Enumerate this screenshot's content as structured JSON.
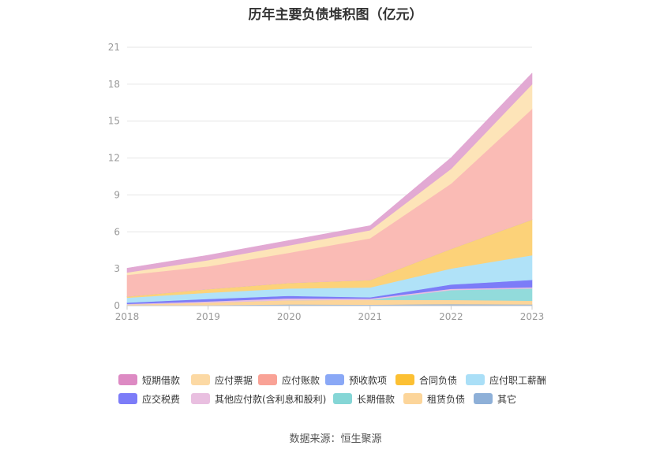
{
  "chart_data": {
    "type": "area",
    "stacked": true,
    "title": "历年主要负债堆积图（亿元）",
    "x": [
      "2018",
      "2019",
      "2020",
      "2021",
      "2022",
      "2023"
    ],
    "ylim": [
      0,
      21
    ],
    "yticks": [
      "0",
      "3",
      "6",
      "9",
      "12",
      "15",
      "18",
      "21"
    ],
    "grid": true,
    "legend_position": "bottom",
    "series": [
      {
        "name": "其它",
        "color": "#8eb0d8",
        "values": [
          0.05,
          0.05,
          0.1,
          0.08,
          0.12,
          0.1
        ]
      },
      {
        "name": "租赁负债",
        "color": "#fcd59a",
        "values": [
          0.05,
          0.2,
          0.35,
          0.4,
          0.35,
          0.3
        ]
      },
      {
        "name": "长期借款",
        "color": "#92dbdb",
        "values": [
          0.0,
          0.0,
          0.0,
          0.0,
          0.8,
          1.0
        ]
      },
      {
        "name": "其他应付款(含利息和股利)",
        "color": "#e9bfe0",
        "values": [
          0.05,
          0.1,
          0.15,
          0.1,
          0.1,
          0.1
        ]
      },
      {
        "name": "应交税费",
        "color": "#7c7cf8",
        "values": [
          0.1,
          0.2,
          0.2,
          0.1,
          0.35,
          0.6
        ]
      },
      {
        "name": "应付职工薪酬",
        "color": "#b0e2f8",
        "values": [
          0.4,
          0.5,
          0.6,
          0.8,
          1.3,
          2.0
        ]
      },
      {
        "name": "合同负债",
        "color": "#fcd279",
        "values": [
          0.1,
          0.3,
          0.45,
          0.6,
          1.6,
          2.9
        ]
      },
      {
        "name": "预收款项",
        "color": "#8aa8f6",
        "values": [
          0.0,
          0.0,
          0.0,
          0.0,
          0.0,
          0.0
        ]
      },
      {
        "name": "应付账款",
        "color": "#fabbb5",
        "values": [
          1.75,
          1.85,
          2.45,
          3.4,
          5.3,
          9.0
        ]
      },
      {
        "name": "应付票据",
        "color": "#fde4b8",
        "values": [
          0.2,
          0.5,
          0.6,
          0.65,
          1.2,
          2.0
        ]
      },
      {
        "name": "短期借款",
        "color": "#e2a9d3",
        "values": [
          0.35,
          0.4,
          0.4,
          0.37,
          0.9,
          0.9
        ]
      }
    ]
  },
  "legend": {
    "row1": [
      {
        "label": "短期借款",
        "color": "#dd8ac3"
      },
      {
        "label": "应付票据",
        "color": "#fcd9a4"
      },
      {
        "label": "应付账款",
        "color": "#f9a296"
      },
      {
        "label": "预收款项",
        "color": "#8aa8f6"
      },
      {
        "label": "合同负债",
        "color": "#fcc033"
      },
      {
        "label": "应付职工薪酬",
        "color": "#aadff7"
      }
    ],
    "row2": [
      {
        "label": "应交税费",
        "color": "#7c7cf8"
      },
      {
        "label": "其他应付款(含利息和股利)",
        "color": "#e9bfe0"
      },
      {
        "label": "长期借款",
        "color": "#85d6d6"
      },
      {
        "label": "租赁负债",
        "color": "#fcd59a"
      },
      {
        "label": "其它",
        "color": "#8eb0d8"
      }
    ]
  },
  "source": "数据来源：恒生聚源"
}
